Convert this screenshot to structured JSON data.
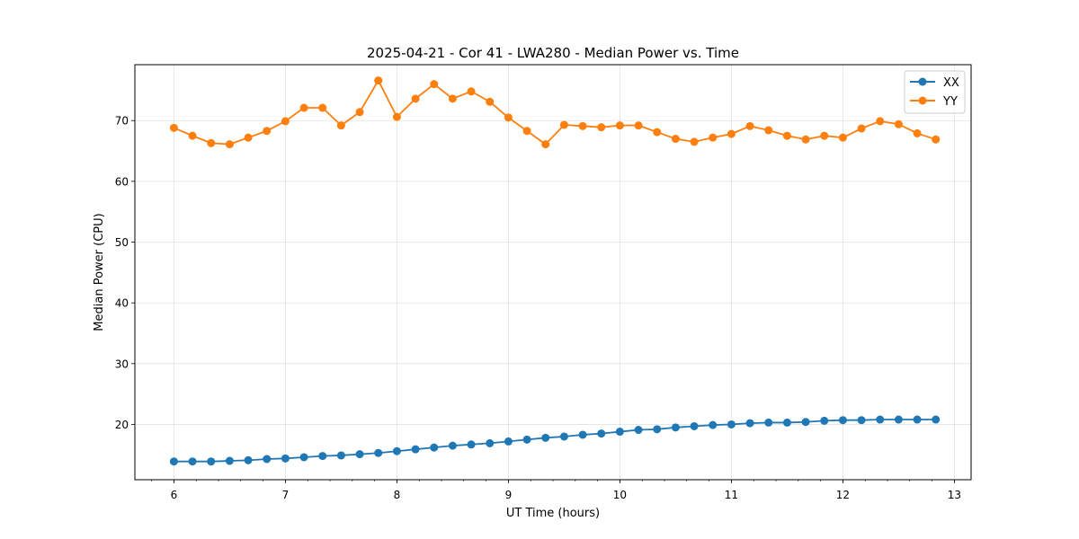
{
  "chart_data": {
    "type": "line",
    "title": "2025-04-21 - Cor 41 - LWA280 - Median Power vs. Time",
    "xlabel": "UT Time (hours)",
    "ylabel": "Median Power (CPU)",
    "xlim": [
      5.65,
      13.15
    ],
    "ylim": [
      10.9,
      79.2
    ],
    "xticks": [
      6,
      7,
      8,
      9,
      10,
      11,
      12,
      13
    ],
    "xminor_step": 0.2,
    "yticks": [
      20,
      30,
      40,
      50,
      60,
      70
    ],
    "grid": true,
    "legend_position": "top-right",
    "x": [
      6.0,
      6.1667,
      6.3333,
      6.5,
      6.6667,
      6.8333,
      7.0,
      7.1667,
      7.3333,
      7.5,
      7.6667,
      7.8333,
      8.0,
      8.1667,
      8.3333,
      8.5,
      8.6667,
      8.8333,
      9.0,
      9.1667,
      9.3333,
      9.5,
      9.6667,
      9.8333,
      10.0,
      10.1667,
      10.3333,
      10.5,
      10.6667,
      10.8333,
      11.0,
      11.1667,
      11.3333,
      11.5,
      11.6667,
      11.8333,
      12.0,
      12.1667,
      12.3333,
      12.5,
      12.6667,
      12.8333
    ],
    "series": [
      {
        "name": "XX",
        "color": "#1f77b4",
        "values": [
          13.9,
          13.9,
          13.9,
          14.0,
          14.1,
          14.3,
          14.4,
          14.6,
          14.8,
          14.9,
          15.1,
          15.3,
          15.6,
          15.9,
          16.2,
          16.5,
          16.7,
          16.9,
          17.2,
          17.5,
          17.8,
          18.0,
          18.3,
          18.5,
          18.8,
          19.1,
          19.2,
          19.5,
          19.7,
          19.9,
          20.0,
          20.2,
          20.3,
          20.3,
          20.4,
          20.6,
          20.7,
          20.7,
          20.8,
          20.8,
          20.8,
          20.8
        ]
      },
      {
        "name": "YY",
        "color": "#ff7f0e",
        "values": [
          68.8,
          67.5,
          66.3,
          66.1,
          67.2,
          68.3,
          69.9,
          72.1,
          72.1,
          69.2,
          71.4,
          76.6,
          70.6,
          73.6,
          76.0,
          73.6,
          74.8,
          73.1,
          70.5,
          68.3,
          66.1,
          69.3,
          69.1,
          68.9,
          69.2,
          69.2,
          68.1,
          67.0,
          66.5,
          67.2,
          67.8,
          69.1,
          68.4,
          67.5,
          66.9,
          67.5,
          67.2,
          68.7,
          69.9,
          69.4,
          67.9,
          66.9
        ]
      }
    ]
  }
}
